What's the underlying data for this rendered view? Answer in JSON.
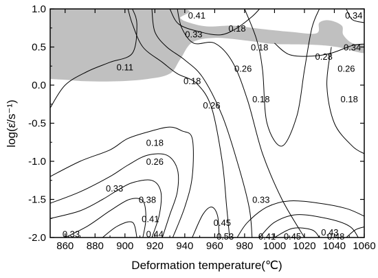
{
  "chart_data": {
    "type": "contour",
    "xlabel": "Deformation temperature(℃)",
    "ylabel": "log(ε̇/s⁻¹)",
    "xlim": [
      850,
      1060
    ],
    "ylim": [
      -2.0,
      1.0
    ],
    "x_ticks": [
      "860",
      "880",
      "900",
      "920",
      "940",
      "960",
      "980",
      "1000",
      "1020",
      "1040",
      "1060"
    ],
    "y_ticks": [
      "1.0",
      "0.5",
      "0.0",
      "-0.5",
      "-1.0",
      "-1.5",
      "-2.0"
    ],
    "colors": {
      "instability_region": "#c0c0c0",
      "lines": "#000000"
    },
    "contour_labels": [
      {
        "text": "0.41",
        "x": 948,
        "y": 0.92
      },
      {
        "text": "0.33",
        "x": 946,
        "y": 0.67
      },
      {
        "text": "0.18",
        "x": 975,
        "y": 0.75
      },
      {
        "text": "0.34",
        "x": 1053,
        "y": 0.92
      },
      {
        "text": "0.18",
        "x": 990,
        "y": 0.5
      },
      {
        "text": "0.34",
        "x": 1052,
        "y": 0.5
      },
      {
        "text": "0.28",
        "x": 1033,
        "y": 0.38
      },
      {
        "text": "0.11",
        "x": 900,
        "y": 0.24
      },
      {
        "text": "0.26",
        "x": 979,
        "y": 0.22
      },
      {
        "text": "0.26",
        "x": 1048,
        "y": 0.22
      },
      {
        "text": "0.18",
        "x": 945,
        "y": 0.06
      },
      {
        "text": "0.26",
        "x": 958,
        "y": -0.26
      },
      {
        "text": "0.18",
        "x": 991,
        "y": -0.18
      },
      {
        "text": "0.18",
        "x": 1050,
        "y": -0.18
      },
      {
        "text": "0.18",
        "x": 920,
        "y": -0.75
      },
      {
        "text": "0.26",
        "x": 920,
        "y": -1.0
      },
      {
        "text": "0.33",
        "x": 893,
        "y": -1.35
      },
      {
        "text": "0.38",
        "x": 915,
        "y": -1.5
      },
      {
        "text": "0.33",
        "x": 991,
        "y": -1.5
      },
      {
        "text": "0.41",
        "x": 917,
        "y": -1.75
      },
      {
        "text": "0.45",
        "x": 965,
        "y": -1.8
      },
      {
        "text": "0.43",
        "x": 1037,
        "y": -1.93
      },
      {
        "text": "0.33",
        "x": 864,
        "y": -1.95
      },
      {
        "text": "0.44",
        "x": 920,
        "y": -1.95
      },
      {
        "text": "0.53",
        "x": 967,
        "y": -1.98
      },
      {
        "text": "0.41",
        "x": 995,
        "y": -1.98
      },
      {
        "text": "0.45",
        "x": 1012,
        "y": -1.98
      },
      {
        "text": "0.48",
        "x": 1041,
        "y": -1.98
      }
    ],
    "instability_region": [
      [
        850,
        1.0
      ],
      [
        937,
        1.0
      ],
      [
        937,
        0.88
      ],
      [
        943,
        0.82
      ],
      [
        955,
        0.77
      ],
      [
        972,
        0.78
      ],
      [
        990,
        0.74
      ],
      [
        1010,
        0.7
      ],
      [
        1028,
        0.68
      ],
      [
        1030,
        0.82
      ],
      [
        1037,
        0.85
      ],
      [
        1045,
        0.78
      ],
      [
        1046,
        0.66
      ],
      [
        1052,
        0.55
      ],
      [
        1060,
        0.53
      ],
      [
        1060,
        0.42
      ],
      [
        1042,
        0.5
      ],
      [
        1026,
        0.53
      ],
      [
        1000,
        0.54
      ],
      [
        983,
        0.58
      ],
      [
        960,
        0.62
      ],
      [
        945,
        0.56
      ],
      [
        937,
        0.34
      ],
      [
        930,
        0.15
      ],
      [
        915,
        0.08
      ],
      [
        895,
        0.05
      ],
      [
        875,
        0.05
      ],
      [
        860,
        0.07
      ],
      [
        850,
        0.08
      ]
    ],
    "contour_lines": [
      [
        [
          850,
          -0.3
        ],
        [
          860,
          0.0
        ],
        [
          875,
          0.18
        ],
        [
          890,
          0.3
        ],
        [
          905,
          0.42
        ],
        [
          908,
          0.8
        ],
        [
          905,
          1.0
        ]
      ],
      [
        [
          902,
          1.0
        ],
        [
          905,
          0.8
        ],
        [
          912,
          0.5
        ],
        [
          925,
          0.3
        ],
        [
          935,
          0.15
        ],
        [
          948,
          0.02
        ],
        [
          958,
          -0.3
        ],
        [
          965,
          -1.0
        ],
        [
          968,
          -1.6
        ],
        [
          970,
          -2.0
        ]
      ],
      [
        [
          918,
          1.0
        ],
        [
          920,
          0.7
        ],
        [
          928,
          0.5
        ],
        [
          940,
          0.33
        ],
        [
          952,
          0.1
        ],
        [
          965,
          -0.4
        ],
        [
          975,
          -1.0
        ],
        [
          983,
          -1.6
        ],
        [
          985,
          -2.0
        ]
      ],
      [
        [
          935,
          1.0
        ],
        [
          938,
          0.75
        ],
        [
          946,
          0.55
        ],
        [
          960,
          0.55
        ],
        [
          972,
          0.3
        ],
        [
          982,
          -0.2
        ],
        [
          992,
          -0.9
        ],
        [
          1005,
          -1.5
        ],
        [
          1020,
          -2.0
        ]
      ],
      [
        [
          930,
          1.0
        ],
        [
          936,
          0.8
        ],
        [
          950,
          0.7
        ],
        [
          964,
          0.66
        ],
        [
          975,
          0.75
        ],
        [
          985,
          0.9
        ],
        [
          990,
          1.0
        ]
      ],
      [
        [
          980,
          1.0
        ],
        [
          988,
          0.6
        ],
        [
          992,
          0.2
        ],
        [
          995,
          -0.5
        ],
        [
          1005,
          -0.8
        ],
        [
          1015,
          -0.4
        ],
        [
          1020,
          0.2
        ],
        [
          1025,
          0.75
        ],
        [
          1030,
          1.0
        ]
      ],
      [
        [
          1000,
          0.55
        ],
        [
          1010,
          0.4
        ],
        [
          1025,
          0.38
        ],
        [
          1038,
          0.42
        ],
        [
          1052,
          0.52
        ],
        [
          1060,
          0.54
        ]
      ],
      [
        [
          1048,
          1.0
        ],
        [
          1052,
          0.86
        ],
        [
          1060,
          0.82
        ]
      ],
      [
        [
          1038,
          0.5
        ],
        [
          1035,
          0.0
        ],
        [
          1040,
          -0.5
        ],
        [
          1052,
          -0.8
        ],
        [
          1060,
          -0.9
        ]
      ],
      [
        [
          850,
          -1.2
        ],
        [
          870,
          -1.0
        ],
        [
          890,
          -0.85
        ],
        [
          902,
          -0.7
        ],
        [
          918,
          -0.6
        ],
        [
          930,
          -0.55
        ],
        [
          938,
          -0.6
        ],
        [
          945,
          -0.7
        ],
        [
          945,
          -1.2
        ],
        [
          940,
          -1.6
        ],
        [
          932,
          -2.0
        ]
      ],
      [
        [
          850,
          -1.55
        ],
        [
          870,
          -1.4
        ],
        [
          890,
          -1.2
        ],
        [
          902,
          -1.05
        ],
        [
          915,
          -0.92
        ],
        [
          928,
          -0.92
        ],
        [
          935,
          -1.1
        ],
        [
          935,
          -1.4
        ],
        [
          930,
          -1.7
        ],
        [
          925,
          -2.0
        ]
      ],
      [
        [
          850,
          -1.75
        ],
        [
          870,
          -1.65
        ],
        [
          885,
          -1.5
        ],
        [
          895,
          -1.38
        ],
        [
          905,
          -1.28
        ],
        [
          918,
          -1.25
        ],
        [
          924,
          -1.4
        ],
        [
          923,
          -1.7
        ],
        [
          918,
          -2.0
        ]
      ],
      [
        [
          860,
          -2.0
        ],
        [
          875,
          -1.85
        ],
        [
          890,
          -1.65
        ],
        [
          903,
          -1.5
        ],
        [
          912,
          -1.52
        ],
        [
          914,
          -1.75
        ],
        [
          912,
          -2.0
        ]
      ],
      [
        [
          885,
          -2.0
        ],
        [
          895,
          -1.85
        ],
        [
          905,
          -1.8
        ],
        [
          908,
          -2.0
        ]
      ],
      [
        [
          945,
          -2.0
        ],
        [
          952,
          -1.7
        ],
        [
          958,
          -1.6
        ],
        [
          962,
          -1.72
        ],
        [
          963,
          -2.0
        ]
      ],
      [
        [
          975,
          -2.0
        ],
        [
          982,
          -1.8
        ],
        [
          995,
          -1.6
        ],
        [
          1010,
          -1.52
        ],
        [
          1030,
          -1.55
        ],
        [
          1048,
          -1.62
        ],
        [
          1060,
          -1.72
        ]
      ],
      [
        [
          990,
          -2.0
        ],
        [
          1000,
          -1.8
        ],
        [
          1015,
          -1.7
        ],
        [
          1035,
          -1.75
        ],
        [
          1050,
          -1.85
        ],
        [
          1056,
          -2.0
        ]
      ],
      [
        [
          1000,
          -2.0
        ],
        [
          1012,
          -1.88
        ],
        [
          1025,
          -1.9
        ],
        [
          1030,
          -2.0
        ]
      ],
      [
        [
          1048,
          -2.0
        ],
        [
          1054,
          -1.9
        ],
        [
          1060,
          -1.86
        ]
      ]
    ]
  }
}
